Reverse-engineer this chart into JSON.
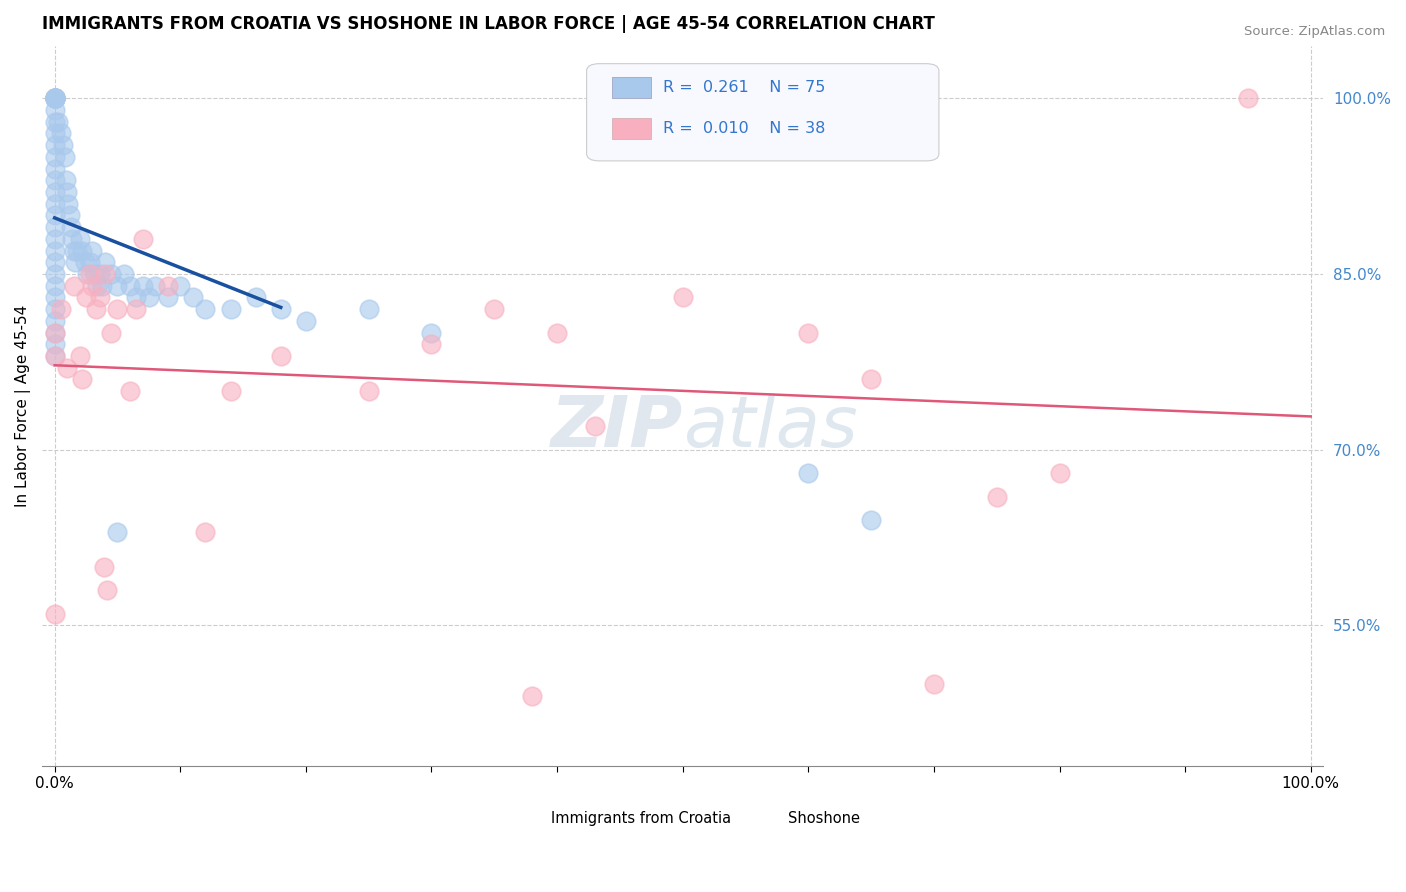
{
  "title": "IMMIGRANTS FROM CROATIA VS SHOSHONE IN LABOR FORCE | AGE 45-54 CORRELATION CHART",
  "source": "Source: ZipAtlas.com",
  "ylabel": "In Labor Force | Age 45-54",
  "xlim": [
    -0.01,
    1.01
  ],
  "ylim": [
    0.43,
    1.045
  ],
  "xticks": [
    0.0,
    0.1,
    0.2,
    0.3,
    0.4,
    0.5,
    0.6,
    0.7,
    0.8,
    0.9,
    1.0
  ],
  "xticklabels": [
    "0.0%",
    "",
    "",
    "",
    "",
    "",
    "",
    "",
    "",
    "",
    "100.0%"
  ],
  "yticks_right": [
    1.0,
    0.85,
    0.7,
    0.55
  ],
  "yticklabels_right": [
    "100.0%",
    "85.0%",
    "70.0%",
    "55.0%"
  ],
  "croatia_R": "0.261",
  "croatia_N": "75",
  "shoshone_R": "0.010",
  "shoshone_N": "38",
  "croatia_color": "#a8c8ec",
  "shoshone_color": "#f8b0c0",
  "croatia_line_color": "#1a50a0",
  "shoshone_line_color": "#e05878",
  "background_color": "#ffffff",
  "watermark_color": "#d0dff0",
  "croatia_scatter_x": [
    0.0,
    0.0,
    0.0,
    0.0,
    0.0,
    0.0,
    0.0,
    0.0,
    0.0,
    0.0,
    0.0,
    0.0,
    0.0,
    0.0,
    0.0,
    0.0,
    0.0,
    0.0,
    0.0,
    0.0,
    0.0,
    0.0,
    0.0,
    0.0,
    0.0,
    0.0,
    0.0,
    0.0,
    0.0,
    0.0,
    0.003,
    0.005,
    0.007,
    0.008,
    0.009,
    0.01,
    0.011,
    0.012,
    0.013,
    0.014,
    0.015,
    0.016,
    0.018,
    0.02,
    0.022,
    0.024,
    0.026,
    0.028,
    0.03,
    0.032,
    0.034,
    0.036,
    0.038,
    0.04,
    0.045,
    0.05,
    0.055,
    0.06,
    0.065,
    0.07,
    0.075,
    0.08,
    0.09,
    0.1,
    0.11,
    0.12,
    0.14,
    0.16,
    0.18,
    0.2,
    0.25,
    0.3,
    0.05,
    0.6,
    0.65
  ],
  "croatia_scatter_y": [
    1.0,
    1.0,
    1.0,
    1.0,
    1.0,
    1.0,
    1.0,
    1.0,
    0.99,
    0.98,
    0.97,
    0.96,
    0.95,
    0.94,
    0.93,
    0.92,
    0.91,
    0.9,
    0.89,
    0.88,
    0.87,
    0.86,
    0.85,
    0.84,
    0.83,
    0.82,
    0.81,
    0.8,
    0.79,
    0.78,
    0.98,
    0.97,
    0.96,
    0.95,
    0.93,
    0.92,
    0.91,
    0.9,
    0.89,
    0.88,
    0.87,
    0.86,
    0.87,
    0.88,
    0.87,
    0.86,
    0.85,
    0.86,
    0.87,
    0.85,
    0.84,
    0.85,
    0.84,
    0.86,
    0.85,
    0.84,
    0.85,
    0.84,
    0.83,
    0.84,
    0.83,
    0.84,
    0.83,
    0.84,
    0.83,
    0.82,
    0.82,
    0.83,
    0.82,
    0.81,
    0.82,
    0.8,
    0.63,
    0.68,
    0.64
  ],
  "shoshone_scatter_x": [
    0.0,
    0.0,
    0.0,
    0.005,
    0.01,
    0.015,
    0.02,
    0.022,
    0.025,
    0.028,
    0.03,
    0.033,
    0.036,
    0.039,
    0.04,
    0.042,
    0.045,
    0.05,
    0.06,
    0.065,
    0.07,
    0.09,
    0.12,
    0.14,
    0.18,
    0.25,
    0.3,
    0.35,
    0.38,
    0.4,
    0.43,
    0.5,
    0.6,
    0.65,
    0.7,
    0.75,
    0.8,
    0.95
  ],
  "shoshone_scatter_y": [
    0.8,
    0.78,
    0.56,
    0.82,
    0.77,
    0.84,
    0.78,
    0.76,
    0.83,
    0.85,
    0.84,
    0.82,
    0.83,
    0.6,
    0.85,
    0.58,
    0.8,
    0.82,
    0.75,
    0.82,
    0.88,
    0.84,
    0.63,
    0.75,
    0.78,
    0.75,
    0.79,
    0.82,
    0.49,
    0.8,
    0.72,
    0.83,
    0.8,
    0.76,
    0.5,
    0.66,
    0.68,
    1.0
  ]
}
